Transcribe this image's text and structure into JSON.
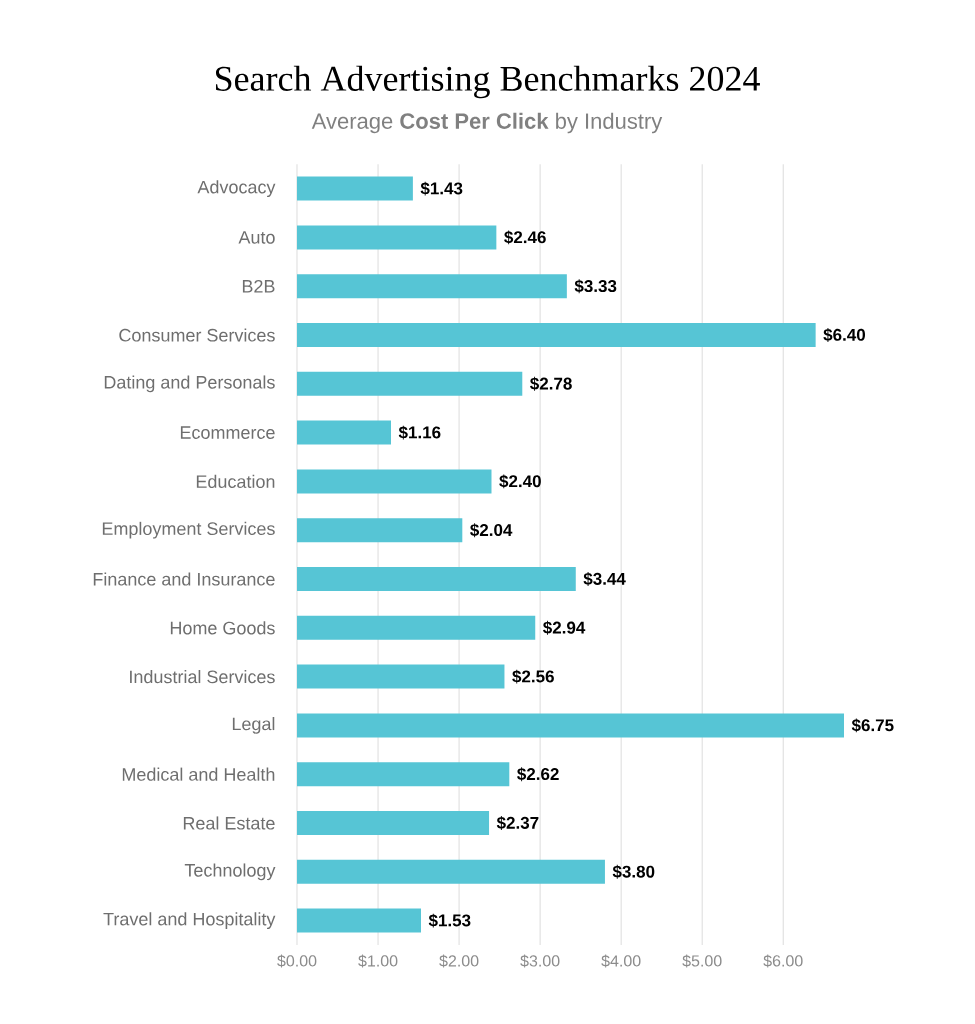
{
  "chart_data": {
    "type": "bar",
    "orientation": "horizontal",
    "title": "Search Advertising Benchmarks 2024",
    "subtitle": "Average **Cost Per Click** by Industry",
    "categories": [
      "Advocacy",
      "Auto",
      "B2B",
      "Consumer Services",
      "Dating and Personals",
      "Ecommerce",
      "Education",
      "Employment Services",
      "Finance and Insurance",
      "Home Goods",
      "Industrial Services",
      "Legal",
      "Medical and Health",
      "Real Estate",
      "Technology",
      "Travel and Hospitality"
    ],
    "values": [
      1.43,
      2.46,
      3.33,
      6.4,
      2.78,
      1.16,
      2.4,
      2.04,
      3.44,
      2.94,
      2.56,
      6.75,
      2.62,
      2.37,
      3.8,
      1.53
    ],
    "value_labels": [
      "$1.43",
      "$2.46",
      "$3.33",
      "$6.40",
      "$2.78",
      "$1.16",
      "$2.40",
      "$2.04",
      "$3.44",
      "$2.94",
      "$2.56",
      "$6.75",
      "$2.62",
      "$2.37",
      "$3.80",
      "$1.53"
    ],
    "color": "#56c5d5",
    "xlim": [
      0,
      6.75
    ],
    "xticks": [
      {
        "value": 0,
        "label": "$0.00"
      },
      {
        "value": 1,
        "label": "$1.00"
      },
      {
        "value": 2,
        "label": "$2.00"
      },
      {
        "value": 3,
        "label": "$3.00"
      },
      {
        "value": 4,
        "label": "$4.00"
      },
      {
        "value": 5,
        "label": "$5.00"
      },
      {
        "value": 6,
        "label": "$6.00"
      }
    ],
    "grid": "x"
  }
}
